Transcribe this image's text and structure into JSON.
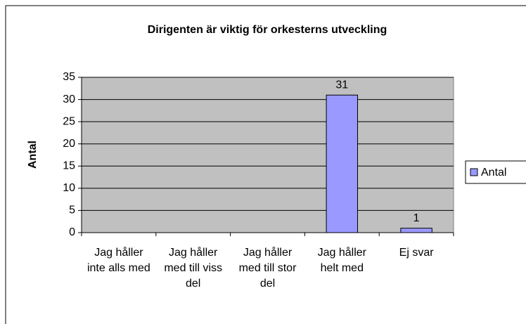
{
  "chart_data": {
    "type": "bar",
    "title": "Dirigenten är viktig för orkesterns utveckling",
    "y_label": "Antal",
    "categories": [
      "Jag håller inte alls med",
      "Jag håller med till viss del",
      "Jag håller med till stor del",
      "Jag håller helt med",
      "Ej svar"
    ],
    "series": [
      {
        "name": "Antal",
        "color": "#9999ff",
        "values": [
          null,
          null,
          null,
          31,
          1
        ]
      }
    ],
    "ylim": [
      0,
      35
    ],
    "yticks": [
      0,
      5,
      10,
      15,
      20,
      25,
      30,
      35
    ],
    "grid": true,
    "legend": "right"
  }
}
